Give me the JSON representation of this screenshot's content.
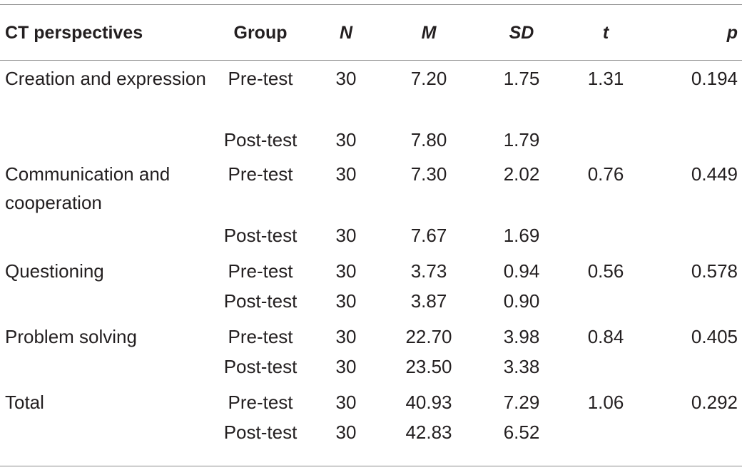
{
  "table": {
    "headers": {
      "perspective": "CT perspectives",
      "group": "Group",
      "n": "N",
      "m": "M",
      "sd": "SD",
      "t": "t",
      "p": "p"
    },
    "rows": [
      {
        "perspective": "Creation and expression",
        "group": "Pre-test",
        "n": "30",
        "m": "7.20",
        "sd": "1.75",
        "t": "1.31",
        "p": "0.194"
      },
      {
        "perspective": "",
        "group": "Post-test",
        "n": "30",
        "m": "7.80",
        "sd": "1.79",
        "t": "",
        "p": ""
      },
      {
        "perspective": "Communication and cooperation",
        "group": "Pre-test",
        "n": "30",
        "m": "7.30",
        "sd": "2.02",
        "t": "0.76",
        "p": "0.449"
      },
      {
        "perspective": "",
        "group": "Post-test",
        "n": "30",
        "m": "7.67",
        "sd": "1.69",
        "t": "",
        "p": ""
      },
      {
        "perspective": "Questioning",
        "group": "Pre-test",
        "n": "30",
        "m": "3.73",
        "sd": "0.94",
        "t": "0.56",
        "p": "0.578"
      },
      {
        "perspective": "",
        "group": "Post-test",
        "n": "30",
        "m": "3.87",
        "sd": "0.90",
        "t": "",
        "p": ""
      },
      {
        "perspective": "Problem solving",
        "group": "Pre-test",
        "n": "30",
        "m": "22.70",
        "sd": "3.98",
        "t": "0.84",
        "p": "0.405"
      },
      {
        "perspective": "",
        "group": "Post-test",
        "n": "30",
        "m": "23.50",
        "sd": "3.38",
        "t": "",
        "p": ""
      },
      {
        "perspective": "Total",
        "group": "Pre-test",
        "n": "30",
        "m": "40.93",
        "sd": "7.29",
        "t": "1.06",
        "p": "0.292"
      },
      {
        "perspective": "",
        "group": "Post-test",
        "n": "30",
        "m": "42.83",
        "sd": "6.52",
        "t": "",
        "p": ""
      }
    ]
  }
}
